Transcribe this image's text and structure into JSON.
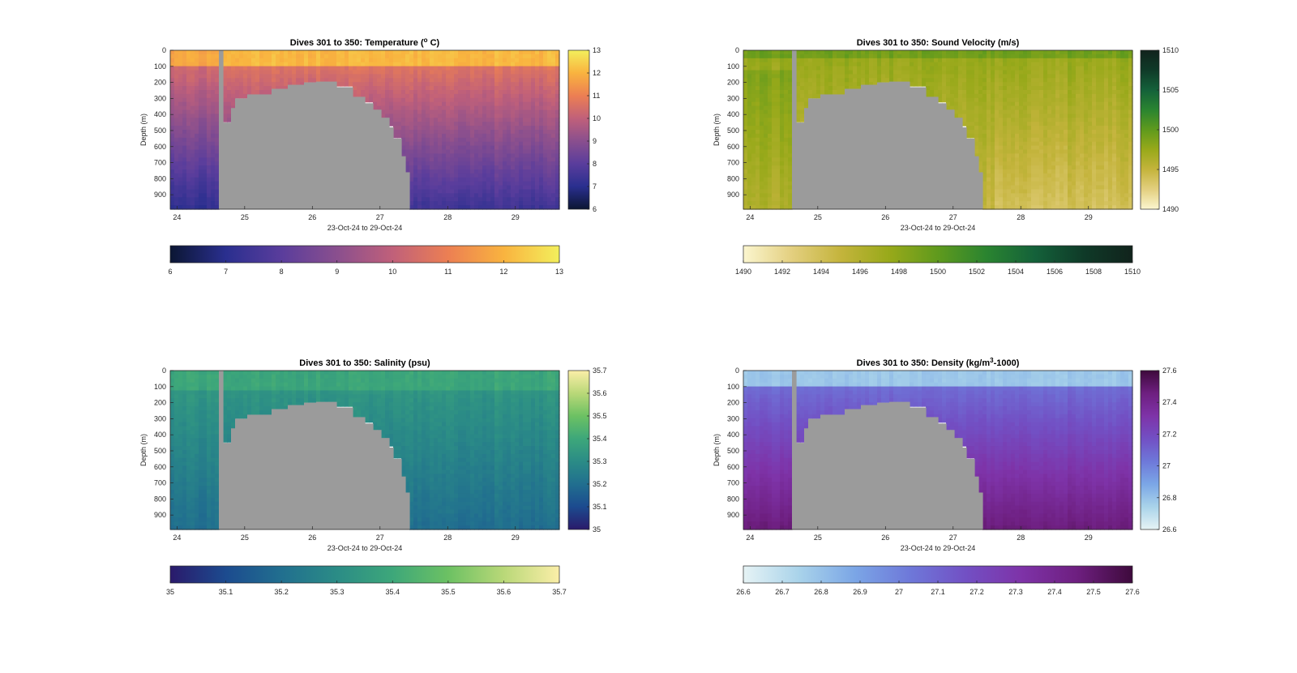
{
  "figure": {
    "background": "#ffffff",
    "land_color": "#9b9b9b",
    "frame_color": "#262626"
  },
  "chart_data": [
    {
      "id": "temperature",
      "type": "heatmap",
      "title": "Dives 301 to 350: Temperature (",
      "title_sup": "o",
      "title_tail": " C)",
      "ylabel": "Depth (m)",
      "xlabel": "23-Oct-24 to 29-Oct-24",
      "xlim": [
        23.9,
        29.65
      ],
      "ylim": [
        0,
        990
      ],
      "x_ticks": [
        "24",
        "25",
        "26",
        "27",
        "28",
        "29"
      ],
      "y_ticks": [
        "0",
        "100",
        "200",
        "300",
        "400",
        "500",
        "600",
        "700",
        "800",
        "900"
      ],
      "clim": [
        6,
        13
      ],
      "colormap": [
        "#0b1633",
        "#2a2f8f",
        "#5a3d9c",
        "#8a4f8e",
        "#c0607a",
        "#ec7f53",
        "#f9b33f",
        "#f3ef5c"
      ],
      "cbar_ticks": [
        "6",
        "7",
        "8",
        "9",
        "10",
        "11",
        "12",
        "13"
      ],
      "hbar_ticks": [
        "6",
        "7",
        "8",
        "9",
        "10",
        "11",
        "12",
        "13"
      ],
      "left_land_max_depth": 0
    },
    {
      "id": "sound-velocity",
      "type": "heatmap",
      "title": "Dives 301 to 350: Sound Velocity (m/s)",
      "title_sup": "",
      "title_tail": "",
      "ylabel": "Depth (m)",
      "xlabel": "23-Oct-24 to 29-Oct-24",
      "xlim": [
        23.9,
        29.65
      ],
      "ylim": [
        0,
        990
      ],
      "x_ticks": [
        "24",
        "25",
        "26",
        "27",
        "28",
        "29"
      ],
      "y_ticks": [
        "0",
        "100",
        "200",
        "300",
        "400",
        "500",
        "600",
        "700",
        "800",
        "900"
      ],
      "clim": [
        1490,
        1510
      ],
      "colormap": [
        "#fbf6cf",
        "#e3cf7f",
        "#c4b43c",
        "#98a91a",
        "#5f9a1d",
        "#2a8430",
        "#14613a",
        "#0f3a28",
        "#11231c"
      ],
      "cbar_ticks": [
        "1490",
        "1495",
        "1500",
        "1505",
        "1510"
      ],
      "hbar_ticks": [
        "1490",
        "1492",
        "1494",
        "1496",
        "1498",
        "1500",
        "1502",
        "1504",
        "1506",
        "1508",
        "1510"
      ],
      "left_land_max_depth": 0
    },
    {
      "id": "salinity",
      "type": "heatmap",
      "title": "Dives 301 to 350: Salinity (psu)",
      "title_sup": "",
      "title_tail": "",
      "ylabel": "Depth (m)",
      "xlabel": "23-Oct-24 to 29-Oct-24",
      "xlim": [
        23.9,
        29.65
      ],
      "ylim": [
        0,
        990
      ],
      "x_ticks": [
        "24",
        "25",
        "26",
        "27",
        "28",
        "29"
      ],
      "y_ticks": [
        "0",
        "100",
        "200",
        "300",
        "400",
        "500",
        "600",
        "700",
        "800",
        "900"
      ],
      "clim": [
        35,
        35.7
      ],
      "colormap": [
        "#2a1a6b",
        "#1c4b8f",
        "#216f8f",
        "#2b8c86",
        "#3da77a",
        "#6cc163",
        "#b9d878",
        "#fbeea8"
      ],
      "cbar_ticks": [
        "35",
        "35.1",
        "35.2",
        "35.3",
        "35.4",
        "35.5",
        "35.6",
        "35.7"
      ],
      "hbar_ticks": [
        "35",
        "35.1",
        "35.2",
        "35.3",
        "35.4",
        "35.5",
        "35.6",
        "35.7"
      ],
      "left_land_max_depth": 0
    },
    {
      "id": "density",
      "type": "heatmap",
      "title": "Dives 301 to 350: Density (kg/m",
      "title_sup": "3",
      "title_tail": "-1000)",
      "ylabel": "Depth (m)",
      "xlabel": "23-Oct-24 to 29-Oct-24",
      "xlim": [
        23.9,
        29.65
      ],
      "ylim": [
        0,
        990
      ],
      "x_ticks": [
        "24",
        "25",
        "26",
        "27",
        "28",
        "29"
      ],
      "y_ticks": [
        "0",
        "100",
        "200",
        "300",
        "400",
        "500",
        "600",
        "700",
        "800",
        "900"
      ],
      "clim": [
        26.6,
        27.6
      ],
      "colormap": [
        "#e6f3f5",
        "#a9d3ea",
        "#7ba6e6",
        "#6e78d9",
        "#7250c4",
        "#7e33a8",
        "#6e1f80",
        "#3e0a3c"
      ],
      "cbar_ticks": [
        "26.6",
        "26.8",
        "27",
        "27.2",
        "27.4",
        "27.6"
      ],
      "hbar_ticks": [
        "26.6",
        "26.7",
        "26.8",
        "26.9",
        "27",
        "27.1",
        "27.2",
        "27.3",
        "27.4",
        "27.5",
        "27.6"
      ],
      "left_land_max_depth": 0
    }
  ]
}
